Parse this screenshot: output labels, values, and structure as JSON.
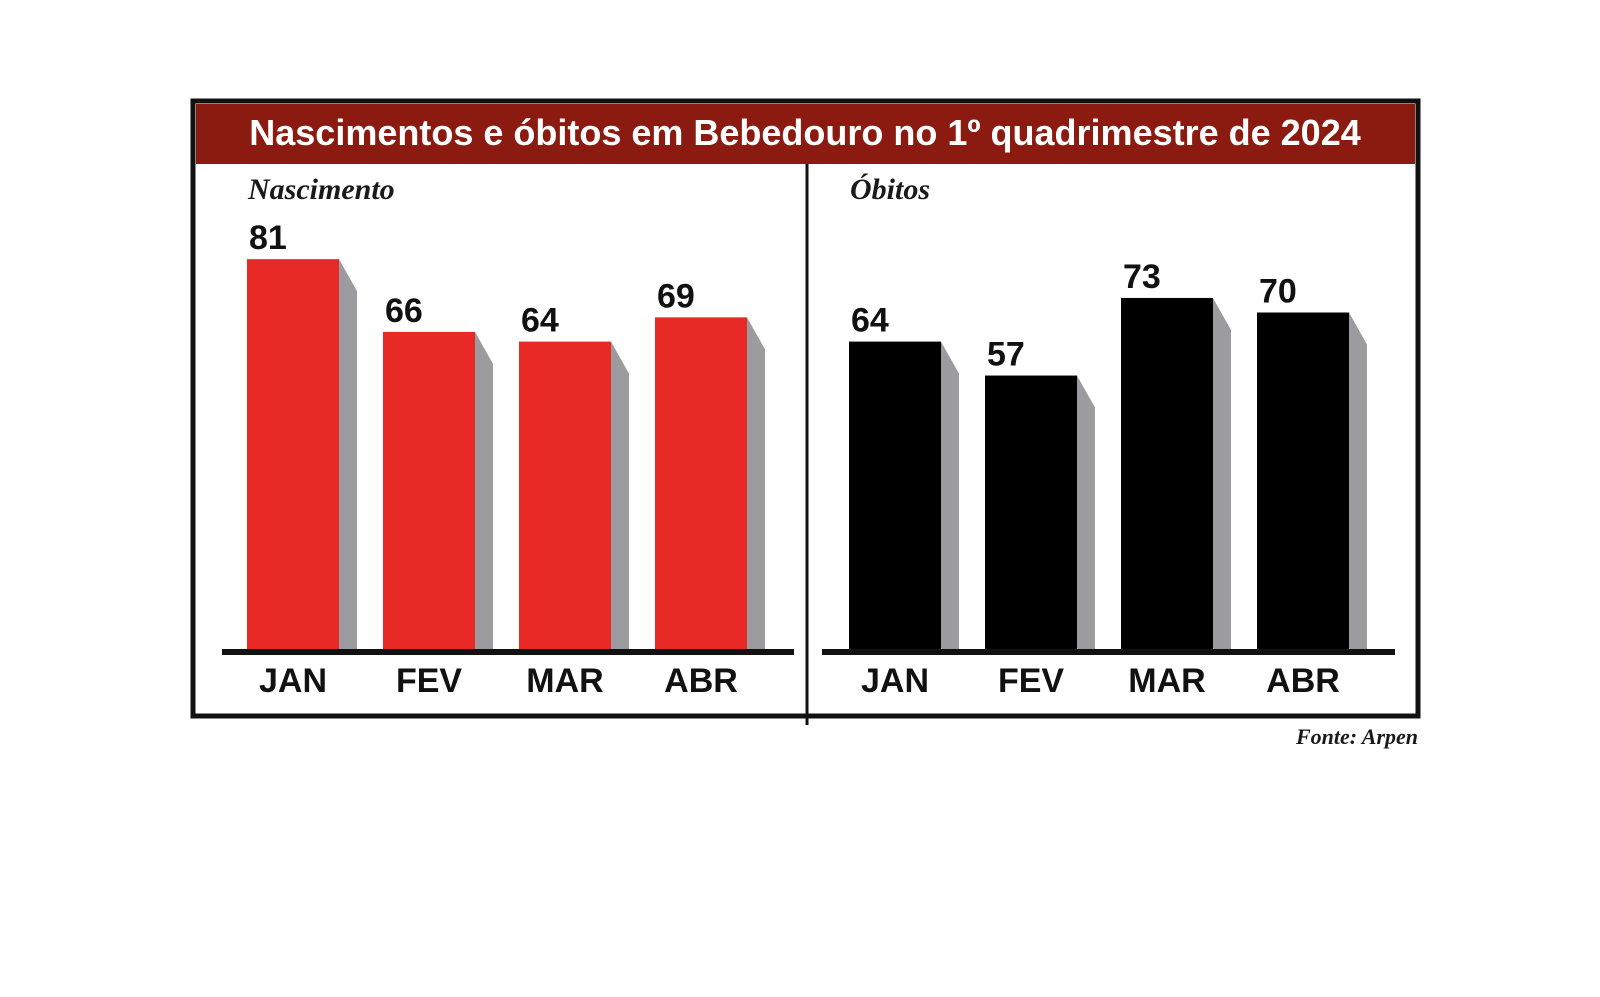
{
  "title": "Nascimentos e óbitos em Bebedouro no 1º quadrimestre de 2024",
  "source": "Fonte: Arpen",
  "colors": {
    "title_bar": "#8b1a10",
    "nascimento_bar": "#e82a26",
    "obitos_bar": "#000000",
    "shadow": "#9c9ca0",
    "frame": "#111111"
  },
  "chart_data": [
    {
      "type": "bar",
      "title": "Nascimento",
      "categories": [
        "JAN",
        "FEV",
        "MAR",
        "ABR"
      ],
      "values": [
        81,
        66,
        64,
        69
      ],
      "data_labels": true,
      "grid": false
    },
    {
      "type": "bar",
      "title": "Óbitos",
      "categories": [
        "JAN",
        "FEV",
        "MAR",
        "ABR"
      ],
      "values": [
        64,
        57,
        73,
        70
      ],
      "data_labels": true,
      "grid": false
    }
  ]
}
